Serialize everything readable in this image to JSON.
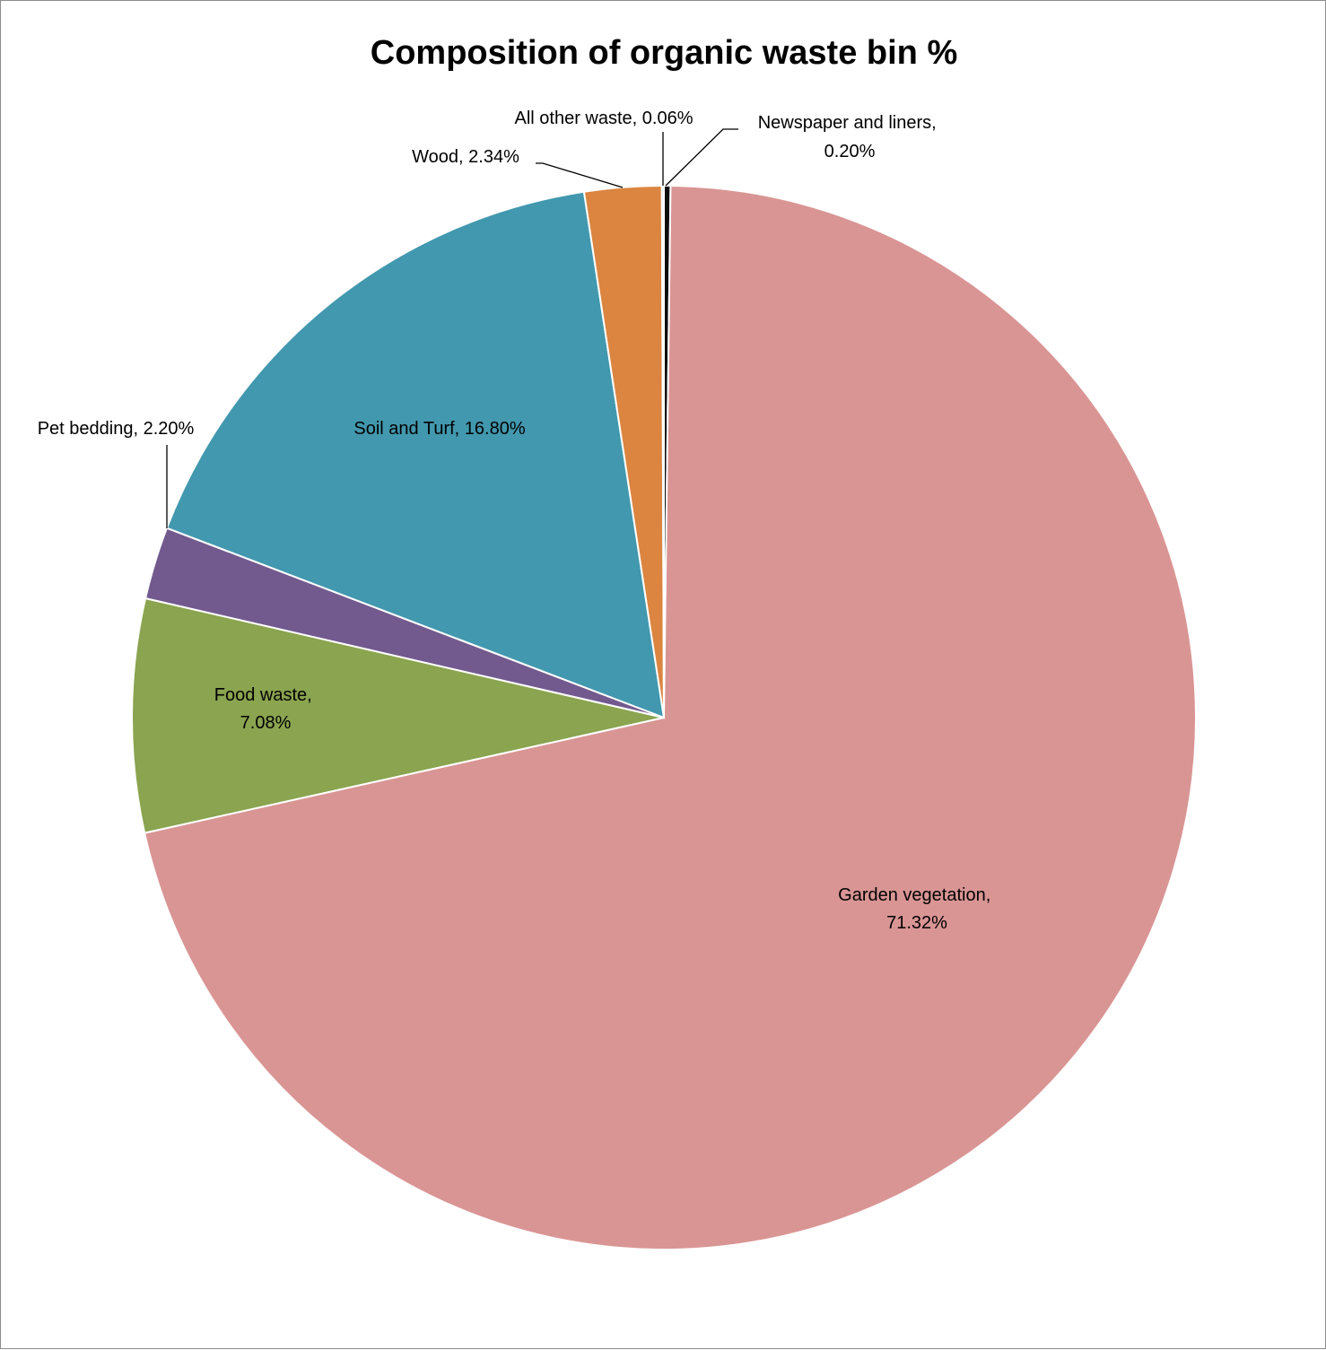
{
  "chart_data": {
    "type": "pie",
    "title": "Composition of organic waste bin %",
    "slices": [
      {
        "name": "Newspaper and liners",
        "value": 0.2,
        "label_line1": "Newspaper and liners,",
        "label_line2": "0.20%",
        "color": "#0d0d0d"
      },
      {
        "name": "Garden vegetation",
        "value": 71.32,
        "label_line1": "Garden vegetation,",
        "label_line2": "71.32%",
        "color": "#d99594"
      },
      {
        "name": "Food waste",
        "value": 7.08,
        "label_line1": "Food waste,",
        "label_line2": "7.08%",
        "color": "#8aa44f"
      },
      {
        "name": "Pet bedding",
        "value": 2.2,
        "label_line1": "Pet bedding, 2.20%",
        "label_line2": "",
        "color": "#725a8e"
      },
      {
        "name": "Soil and Turf",
        "value": 16.8,
        "label_line1": "Soil and Turf, 16.80%",
        "label_line2": "",
        "color": "#4298ae"
      },
      {
        "name": "Wood",
        "value": 2.34,
        "label_line1": "Wood, 2.34%",
        "label_line2": "",
        "color": "#db8540"
      },
      {
        "name": "All other waste",
        "value": 0.06,
        "label_line1": "All other waste, 0.06%",
        "label_line2": "",
        "color": "#8cb4d9"
      }
    ],
    "start_angle": "12 o'clock",
    "direction": "clockwise",
    "legend": "none"
  }
}
